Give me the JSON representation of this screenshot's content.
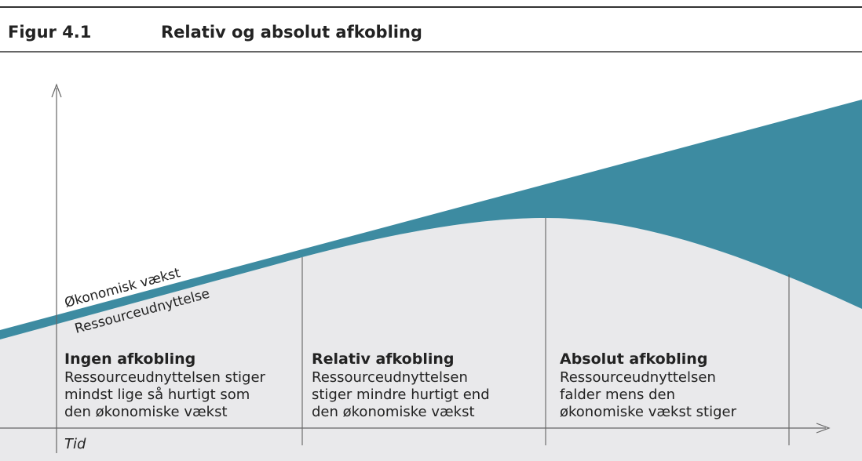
{
  "header": {
    "figure": "Figur 4.1",
    "title": "Relativ og absolut afkobling"
  },
  "lines": {
    "growth": "Økonomisk vækst",
    "resource": "Ressourceudnyttelse"
  },
  "phases": [
    {
      "title": "Ingen afkobling",
      "lines": [
        "Ressourceudnyttelsen stiger",
        "mindst lige så hurtigt som",
        "den økonomiske vækst"
      ]
    },
    {
      "title": "Relativ afkobling",
      "lines": [
        "Ressourceudnyttelsen",
        "stiger mindre hurtigt end",
        "den økonomiske vækst"
      ]
    },
    {
      "title": "Absolut afkobling",
      "lines": [
        "Ressourceudnyttelsen",
        "falder mens den",
        "økonomiske vækst stiger"
      ]
    }
  ],
  "x_axis": "Tid"
}
